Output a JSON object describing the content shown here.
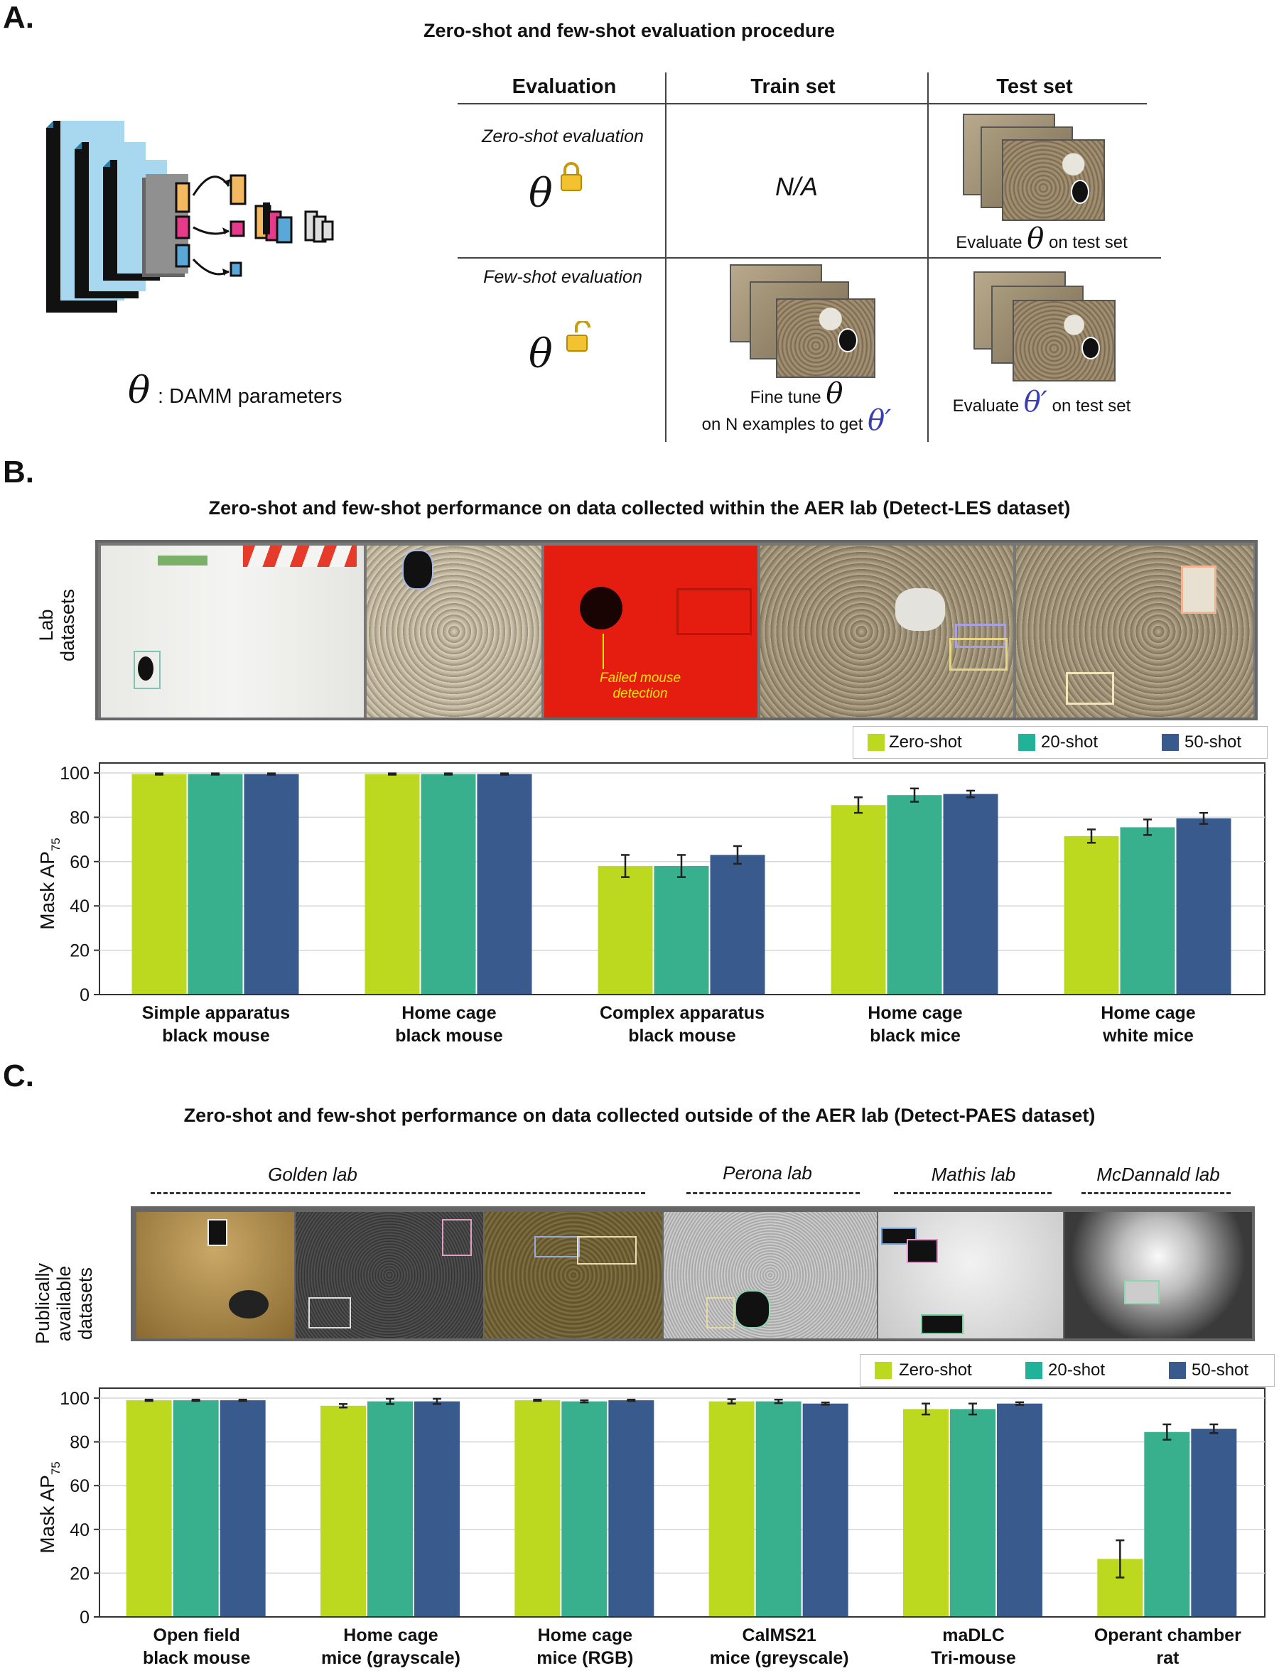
{
  "panel_a": {
    "letter": "A.",
    "title": "Zero-shot and few-shot evaluation procedure",
    "theta_label": ": DAMM parameters",
    "table": {
      "headers": [
        "Evaluation",
        "Train set",
        "Test set"
      ],
      "zero_shot_label": "Zero-shot evaluation",
      "few_shot_label": "Few-shot evaluation",
      "na": "N/A",
      "zero_test_caption_pre": "Evaluate",
      "zero_test_caption_post": "on test set",
      "few_train_caption_1": "Fine tune",
      "few_train_caption_2": "on N examples to get",
      "few_test_caption_pre": "Evaluate",
      "few_test_caption_post": "on test set"
    },
    "theta": "θ",
    "theta_prime": "θ′"
  },
  "panel_b": {
    "letter": "B.",
    "title": "Zero-shot and few-shot performance on data collected within the AER lab (Detect-LES dataset)",
    "side_label": [
      "Lab",
      "datasets"
    ],
    "failed_label": [
      "Failed mouse",
      "detection"
    ]
  },
  "panel_c": {
    "letter": "C.",
    "title": "Zero-shot and few-shot performance on data collected outside of the AER lab (Detect-PAES dataset)",
    "side_label": [
      "Publically",
      "available",
      "datasets"
    ],
    "labs": [
      "Golden lab",
      "Perona lab",
      "Mathis lab",
      "McDannald lab"
    ]
  },
  "legend": [
    "Zero-shot",
    "20-shot",
    "50-shot"
  ],
  "colors": {
    "zero": "#bcd81f",
    "twenty": "#38b08e",
    "fifty": "#385a8d",
    "accent_blue": "#3a3fb0"
  },
  "chart_data": [
    {
      "type": "bar",
      "ylabel": "Mask AP",
      "ylabel_sub": "75",
      "ylim": [
        0,
        100
      ],
      "yticks": [
        0,
        20,
        40,
        60,
        80,
        100
      ],
      "categories": [
        [
          "Simple apparatus",
          "black mouse"
        ],
        [
          "Home cage",
          "black mouse"
        ],
        [
          "Complex apparatus",
          "black mouse"
        ],
        [
          "Home cage",
          "black mice"
        ],
        [
          "Home cage",
          "white mice"
        ]
      ],
      "series": [
        {
          "name": "Zero-shot",
          "values": [
            99.5,
            99.5,
            58,
            85.5,
            71.5
          ],
          "errors": [
            0.3,
            0.3,
            5,
            3.5,
            3
          ]
        },
        {
          "name": "20-shot",
          "values": [
            99.5,
            99.5,
            58,
            90,
            75.5
          ],
          "errors": [
            0.3,
            0.3,
            5,
            3,
            3.5
          ]
        },
        {
          "name": "50-shot",
          "values": [
            99.5,
            99.5,
            63,
            90.5,
            79.5
          ],
          "errors": [
            0.3,
            0.3,
            4,
            1.5,
            2.5
          ]
        }
      ],
      "legend_position": "top-right",
      "grid": true
    },
    {
      "type": "bar",
      "ylabel": "Mask AP",
      "ylabel_sub": "75",
      "ylim": [
        0,
        100
      ],
      "yticks": [
        0,
        20,
        40,
        60,
        80,
        100
      ],
      "categories": [
        [
          "Open field",
          "black mouse"
        ],
        [
          "Home cage",
          "mice (grayscale)"
        ],
        [
          "Home cage",
          "mice (RGB)"
        ],
        [
          "CalMS21",
          "mice (greyscale)"
        ],
        [
          "maDLC",
          "Tri-mouse"
        ],
        [
          "Operant chamber",
          "rat"
        ]
      ],
      "series": [
        {
          "name": "Zero-shot",
          "values": [
            99,
            96.5,
            99,
            98.5,
            95,
            26.5
          ],
          "errors": [
            0.3,
            0.8,
            0.3,
            1,
            2.5,
            8.5
          ]
        },
        {
          "name": "20-shot",
          "values": [
            99,
            98.5,
            98.5,
            98.5,
            95,
            84.5
          ],
          "errors": [
            0.3,
            1.2,
            0.5,
            0.8,
            2.5,
            3.5
          ]
        },
        {
          "name": "50-shot",
          "values": [
            99,
            98.5,
            99,
            97.5,
            97.5,
            86
          ],
          "errors": [
            0.3,
            1.2,
            0.3,
            0.5,
            0.6,
            2
          ]
        }
      ],
      "legend_position": "top-right",
      "grid": true
    }
  ]
}
